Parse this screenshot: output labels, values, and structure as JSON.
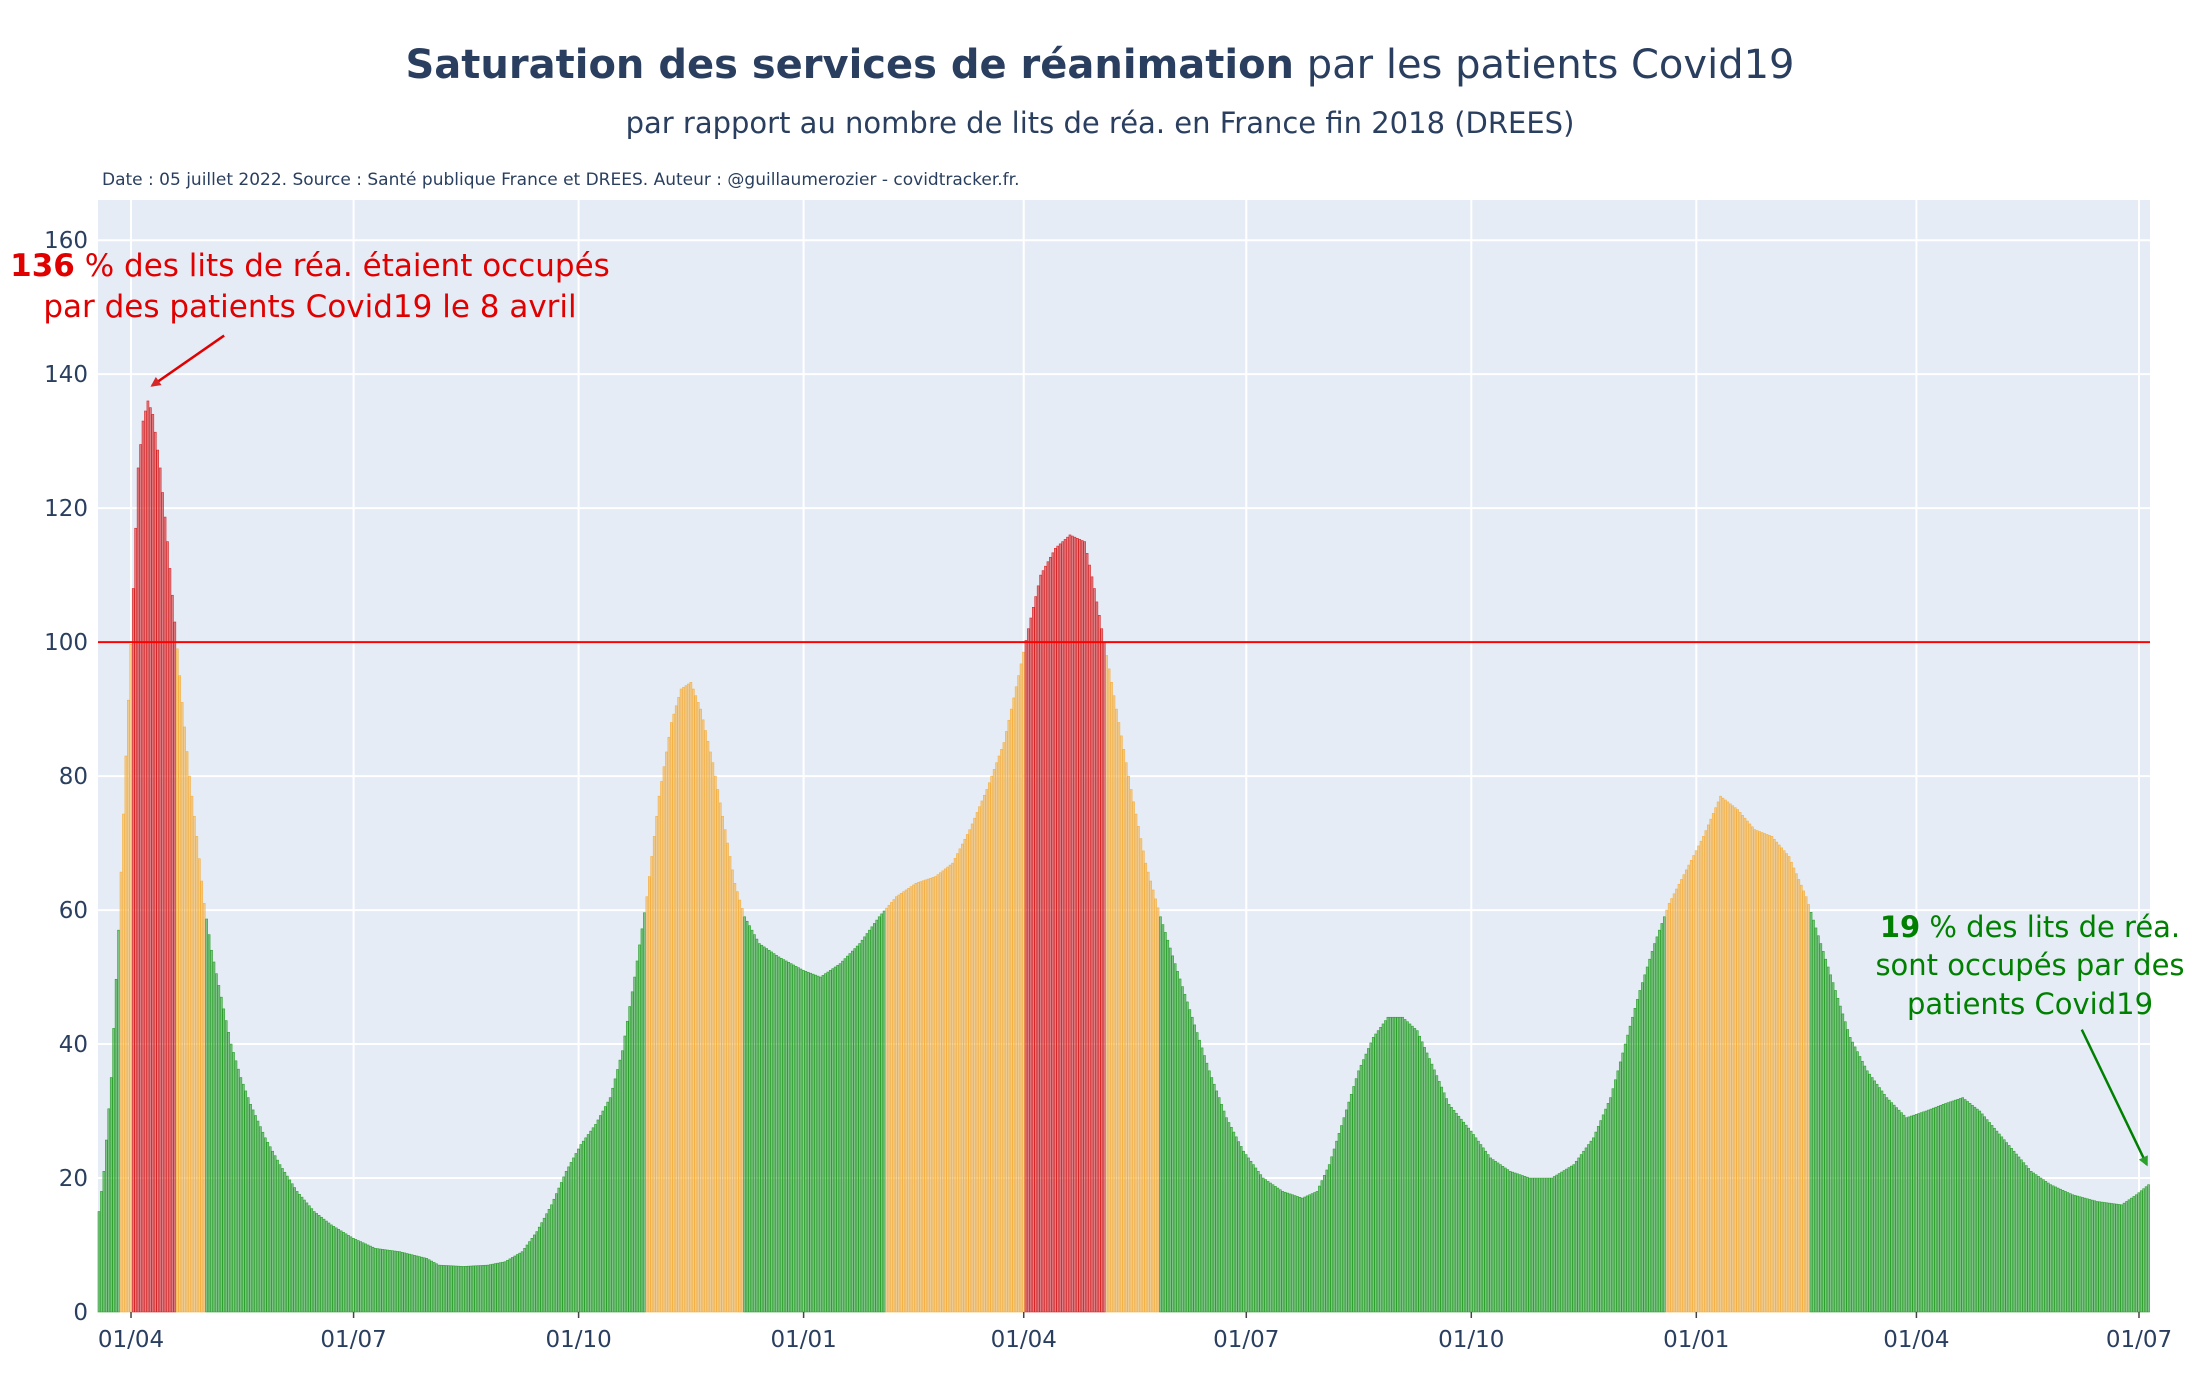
{
  "title": {
    "bold": "Saturation des services de réanimation",
    "regular": "par les patients Covid19"
  },
  "subtitle": "par rapport au nombre de lits de réa. en France fin 2018 (DREES)",
  "source": "Date : 05 juillet 2022. Source : Santé publique France et DREES. Auteur : @guillaumerozier - covidtracker.fr.",
  "annotations": {
    "peak": {
      "value": "136",
      "line1": " % des lits de réa. étaient occupés",
      "line2": "par des patients Covid19 le 8 avril"
    },
    "last": {
      "value": "19",
      "line1": " % des lits de réa.",
      "line2": "sont occupés par des",
      "line3": "patients Covid19"
    }
  },
  "colors": {
    "green": "#2ca02c",
    "orange": "#f5b041",
    "red": "#d62728",
    "reference_line": "#ff0000",
    "plot_bg": "#e5ecf6",
    "grid": "#ffffff"
  },
  "chart_data": {
    "type": "bar",
    "x_range": [
      "2020-03-19",
      "2022-07-05"
    ],
    "ylim": [
      0,
      166
    ],
    "y_ticks": [
      "0",
      "20",
      "40",
      "60",
      "80",
      "100",
      "120",
      "140",
      "160"
    ],
    "x_ticks": [
      {
        "date": "2020-04-01",
        "label": "01/04"
      },
      {
        "date": "2020-07-01",
        "label": "01/07"
      },
      {
        "date": "2020-10-01",
        "label": "01/10"
      },
      {
        "date": "2021-01-01",
        "label": "01/01"
      },
      {
        "date": "2021-04-01",
        "label": "01/04"
      },
      {
        "date": "2021-07-01",
        "label": "01/07"
      },
      {
        "date": "2021-10-01",
        "label": "01/10"
      },
      {
        "date": "2022-01-01",
        "label": "01/01"
      },
      {
        "date": "2022-04-01",
        "label": "01/04"
      },
      {
        "date": "2022-07-01",
        "label": "01/07"
      }
    ],
    "reference_line": 100,
    "color_rule": {
      "green_below": 60,
      "orange_below": 100,
      "red_from": 100
    },
    "keyframes": [
      [
        "2020-03-19",
        15
      ],
      [
        "2020-03-21",
        21
      ],
      [
        "2020-03-24",
        35
      ],
      [
        "2020-03-27",
        57
      ],
      [
        "2020-03-30",
        83
      ],
      [
        "2020-04-02",
        108
      ],
      [
        "2020-04-04",
        126
      ],
      [
        "2020-04-06",
        133
      ],
      [
        "2020-04-08",
        136
      ],
      [
        "2020-04-10",
        134
      ],
      [
        "2020-04-13",
        126
      ],
      [
        "2020-04-16",
        115
      ],
      [
        "2020-04-19",
        103
      ],
      [
        "2020-04-22",
        91
      ],
      [
        "2020-04-25",
        80
      ],
      [
        "2020-04-28",
        71
      ],
      [
        "2020-05-01",
        61
      ],
      [
        "2020-05-04",
        54
      ],
      [
        "2020-05-08",
        47
      ],
      [
        "2020-05-12",
        40
      ],
      [
        "2020-05-16",
        35
      ],
      [
        "2020-05-20",
        31
      ],
      [
        "2020-05-26",
        26
      ],
      [
        "2020-06-01",
        22
      ],
      [
        "2020-06-08",
        18
      ],
      [
        "2020-06-15",
        15
      ],
      [
        "2020-06-22",
        13
      ],
      [
        "2020-07-01",
        11
      ],
      [
        "2020-07-10",
        9.5
      ],
      [
        "2020-07-20",
        9
      ],
      [
        "2020-07-31",
        8
      ],
      [
        "2020-08-05",
        7
      ],
      [
        "2020-08-15",
        6.8
      ],
      [
        "2020-08-25",
        7
      ],
      [
        "2020-09-01",
        7.5
      ],
      [
        "2020-09-08",
        9
      ],
      [
        "2020-09-14",
        12
      ],
      [
        "2020-09-20",
        16
      ],
      [
        "2020-09-26",
        21
      ],
      [
        "2020-10-02",
        25
      ],
      [
        "2020-10-08",
        28
      ],
      [
        "2020-10-14",
        32
      ],
      [
        "2020-10-19",
        39
      ],
      [
        "2020-10-24",
        50
      ],
      [
        "2020-10-29",
        62
      ],
      [
        "2020-11-03",
        77
      ],
      [
        "2020-11-08",
        88
      ],
      [
        "2020-11-12",
        93
      ],
      [
        "2020-11-16",
        94
      ],
      [
        "2020-11-20",
        90
      ],
      [
        "2020-11-25",
        82
      ],
      [
        "2020-11-30",
        72
      ],
      [
        "2020-12-04",
        64
      ],
      [
        "2020-12-08",
        59
      ],
      [
        "2020-12-14",
        55
      ],
      [
        "2020-12-22",
        53
      ],
      [
        "2021-01-01",
        51
      ],
      [
        "2021-01-08",
        50
      ],
      [
        "2021-01-16",
        52
      ],
      [
        "2021-01-24",
        55
      ],
      [
        "2021-02-01",
        59
      ],
      [
        "2021-02-08",
        62
      ],
      [
        "2021-02-16",
        64
      ],
      [
        "2021-02-24",
        65
      ],
      [
        "2021-03-03",
        67
      ],
      [
        "2021-03-10",
        72
      ],
      [
        "2021-03-17",
        78
      ],
      [
        "2021-03-24",
        85
      ],
      [
        "2021-03-30",
        95
      ],
      [
        "2021-04-03",
        102
      ],
      [
        "2021-04-08",
        110
      ],
      [
        "2021-04-14",
        114
      ],
      [
        "2021-04-20",
        116
      ],
      [
        "2021-04-26",
        115
      ],
      [
        "2021-04-30",
        108
      ],
      [
        "2021-05-04",
        100
      ],
      [
        "2021-05-09",
        90
      ],
      [
        "2021-05-15",
        78
      ],
      [
        "2021-05-21",
        67
      ],
      [
        "2021-05-27",
        59
      ],
      [
        "2021-06-02",
        52
      ],
      [
        "2021-06-09",
        44
      ],
      [
        "2021-06-16",
        36
      ],
      [
        "2021-06-23",
        29
      ],
      [
        "2021-06-30",
        24
      ],
      [
        "2021-07-08",
        20
      ],
      [
        "2021-07-16",
        18
      ],
      [
        "2021-07-24",
        17
      ],
      [
        "2021-07-30",
        18
      ],
      [
        "2021-08-04",
        22
      ],
      [
        "2021-08-10",
        29
      ],
      [
        "2021-08-16",
        36
      ],
      [
        "2021-08-22",
        41
      ],
      [
        "2021-08-28",
        44
      ],
      [
        "2021-09-03",
        44
      ],
      [
        "2021-09-09",
        42
      ],
      [
        "2021-09-15",
        37
      ],
      [
        "2021-09-22",
        31
      ],
      [
        "2021-10-01",
        27
      ],
      [
        "2021-10-09",
        23
      ],
      [
        "2021-10-17",
        21
      ],
      [
        "2021-10-25",
        20
      ],
      [
        "2021-11-03",
        20
      ],
      [
        "2021-11-12",
        22
      ],
      [
        "2021-11-20",
        26
      ],
      [
        "2021-11-27",
        32
      ],
      [
        "2021-12-03",
        40
      ],
      [
        "2021-12-09",
        48
      ],
      [
        "2021-12-15",
        55
      ],
      [
        "2021-12-21",
        61
      ],
      [
        "2021-12-28",
        66
      ],
      [
        "2022-01-04",
        71
      ],
      [
        "2022-01-11",
        77
      ],
      [
        "2022-01-18",
        75
      ],
      [
        "2022-01-25",
        72
      ],
      [
        "2022-02-01",
        71
      ],
      [
        "2022-02-08",
        68
      ],
      [
        "2022-02-15",
        62
      ],
      [
        "2022-02-21",
        55
      ],
      [
        "2022-02-27",
        48
      ],
      [
        "2022-03-05",
        41
      ],
      [
        "2022-03-12",
        36
      ],
      [
        "2022-03-20",
        32
      ],
      [
        "2022-03-28",
        29
      ],
      [
        "2022-04-05",
        30
      ],
      [
        "2022-04-12",
        31
      ],
      [
        "2022-04-20",
        32
      ],
      [
        "2022-04-27",
        30
      ],
      [
        "2022-05-04",
        27
      ],
      [
        "2022-05-11",
        24
      ],
      [
        "2022-05-18",
        21
      ],
      [
        "2022-05-26",
        19
      ],
      [
        "2022-06-04",
        17.5
      ],
      [
        "2022-06-14",
        16.5
      ],
      [
        "2022-06-24",
        16
      ],
      [
        "2022-06-30",
        17.5
      ],
      [
        "2022-07-05",
        19
      ]
    ]
  }
}
